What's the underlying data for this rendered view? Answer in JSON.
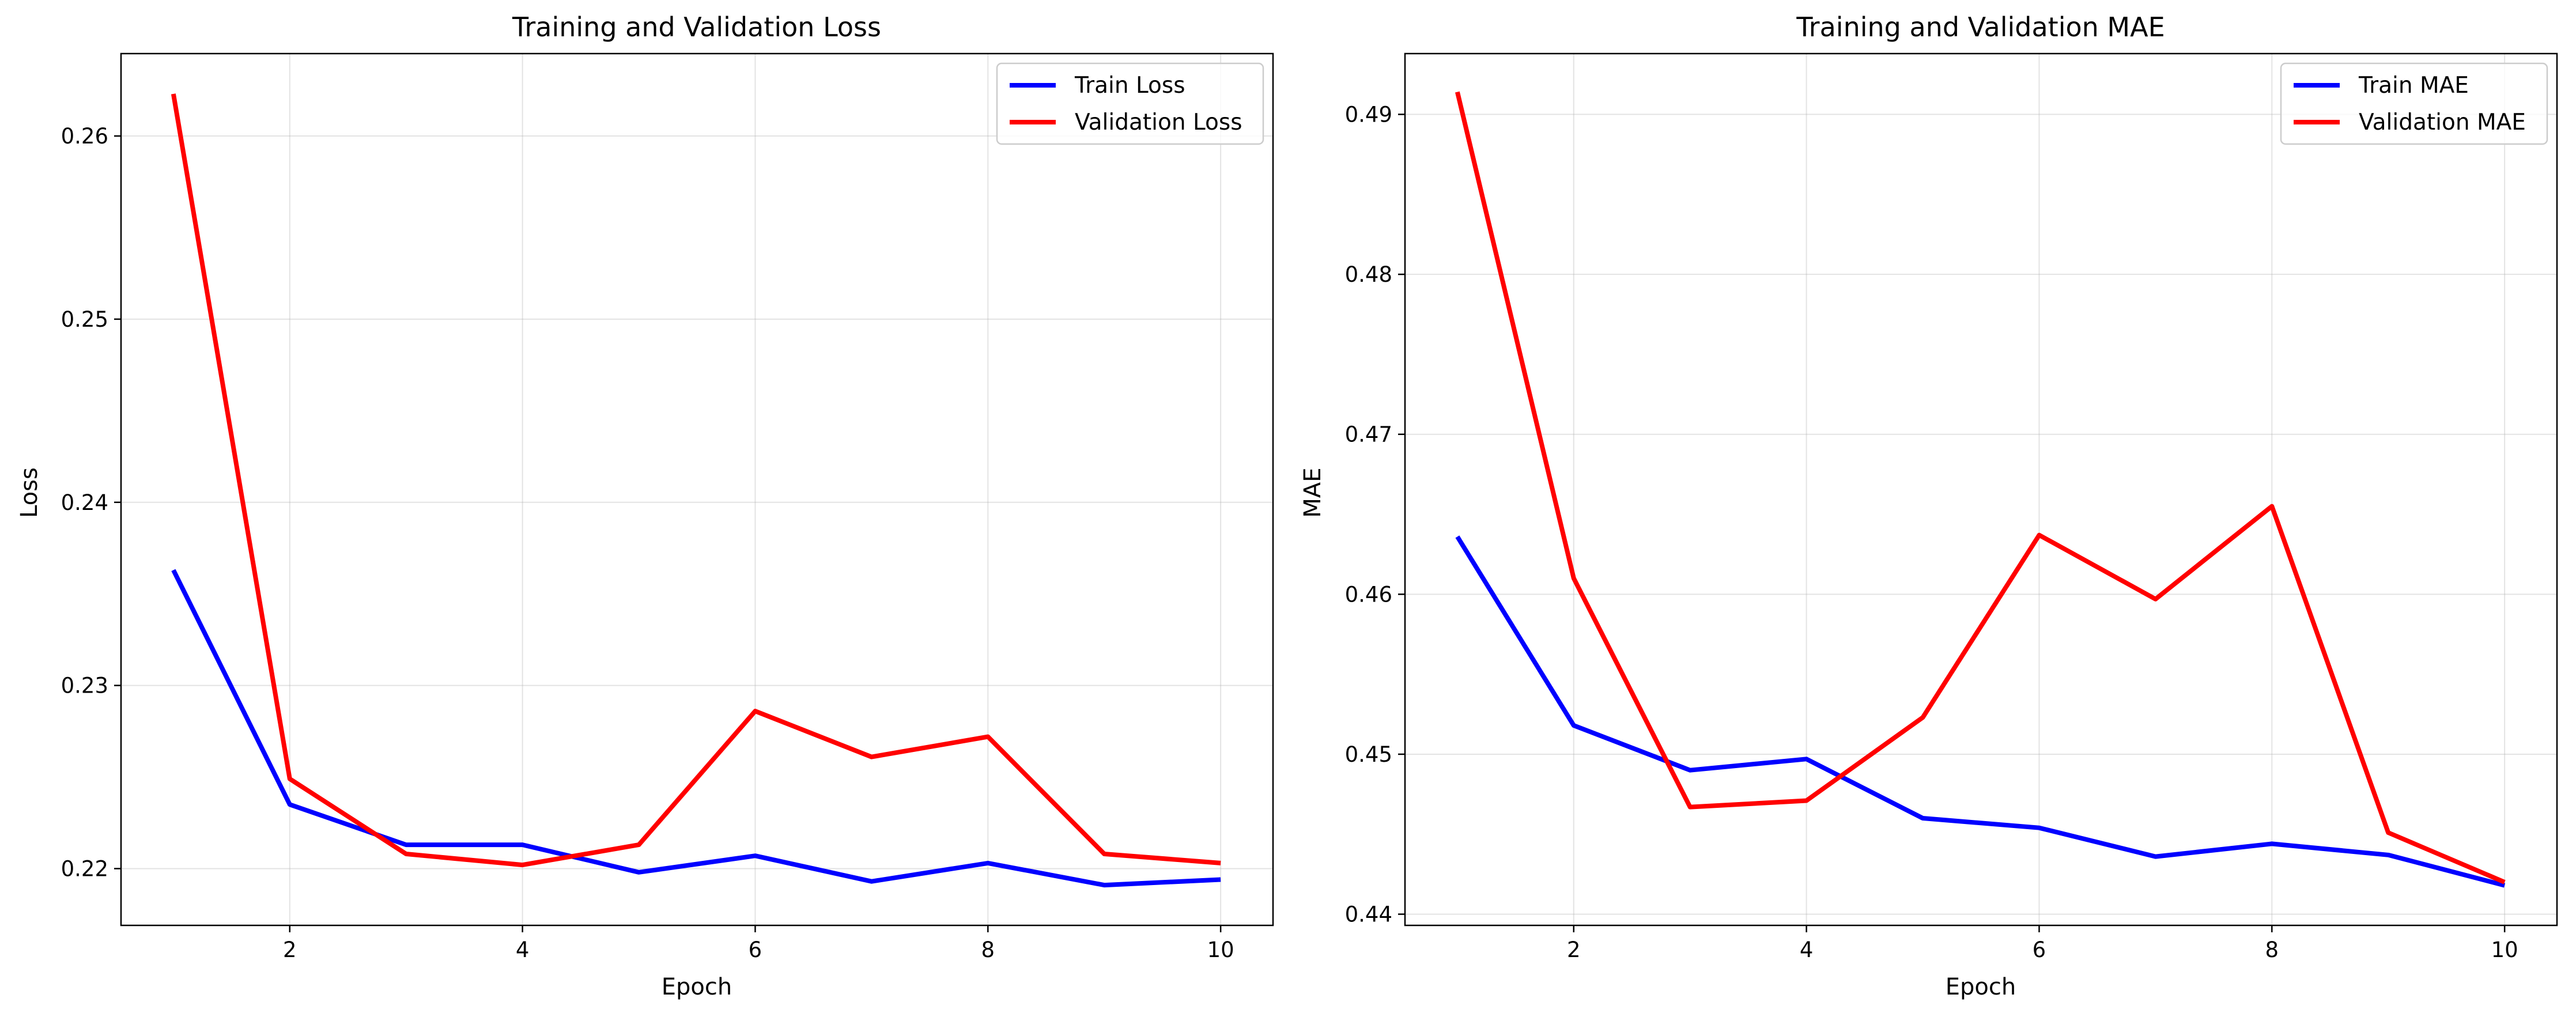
{
  "chart_data": [
    {
      "type": "line",
      "title": "Training and Validation Loss",
      "xlabel": "Epoch",
      "ylabel": "Loss",
      "x": [
        1,
        2,
        3,
        4,
        5,
        6,
        7,
        8,
        9,
        10
      ],
      "xlim": [
        0.55,
        10.45
      ],
      "ylim": [
        0.2169,
        0.2645
      ],
      "xticks": [
        2,
        4,
        6,
        8,
        10
      ],
      "yticks": [
        0.22,
        0.23,
        0.24,
        0.25,
        0.26
      ],
      "ytick_labels": [
        "0.22",
        "0.23",
        "0.24",
        "0.25",
        "0.26"
      ],
      "grid": true,
      "legend": "top-right",
      "series": [
        {
          "name": "Train Loss",
          "color": "#0000ff",
          "values": [
            0.2363,
            0.2235,
            0.2213,
            0.2213,
            0.2198,
            0.2207,
            0.2193,
            0.2203,
            0.2191,
            0.2194
          ]
        },
        {
          "name": "Validation Loss",
          "color": "#ff0000",
          "values": [
            0.2623,
            0.2249,
            0.2208,
            0.2202,
            0.2213,
            0.2286,
            0.2261,
            0.2272,
            0.2208,
            0.2203
          ]
        }
      ]
    },
    {
      "type": "line",
      "title": "Training and Validation MAE",
      "xlabel": "Epoch",
      "ylabel": "MAE",
      "x": [
        1,
        2,
        3,
        4,
        5,
        6,
        7,
        8,
        9,
        10
      ],
      "xlim": [
        0.55,
        10.45
      ],
      "ylim": [
        0.4393,
        0.4938
      ],
      "xticks": [
        2,
        4,
        6,
        8,
        10
      ],
      "yticks": [
        0.44,
        0.45,
        0.46,
        0.47,
        0.48,
        0.49
      ],
      "ytick_labels": [
        "0.44",
        "0.45",
        "0.46",
        "0.47",
        "0.48",
        "0.49"
      ],
      "grid": true,
      "legend": "top-right",
      "series": [
        {
          "name": "Train MAE",
          "color": "#0000ff",
          "values": [
            0.4636,
            0.4518,
            0.449,
            0.4497,
            0.446,
            0.4454,
            0.4436,
            0.4444,
            0.4437,
            0.4418
          ]
        },
        {
          "name": "Validation MAE",
          "color": "#ff0000",
          "values": [
            0.4914,
            0.461,
            0.4467,
            0.4471,
            0.4523,
            0.4637,
            0.4597,
            0.4655,
            0.4451,
            0.442
          ]
        }
      ]
    }
  ]
}
